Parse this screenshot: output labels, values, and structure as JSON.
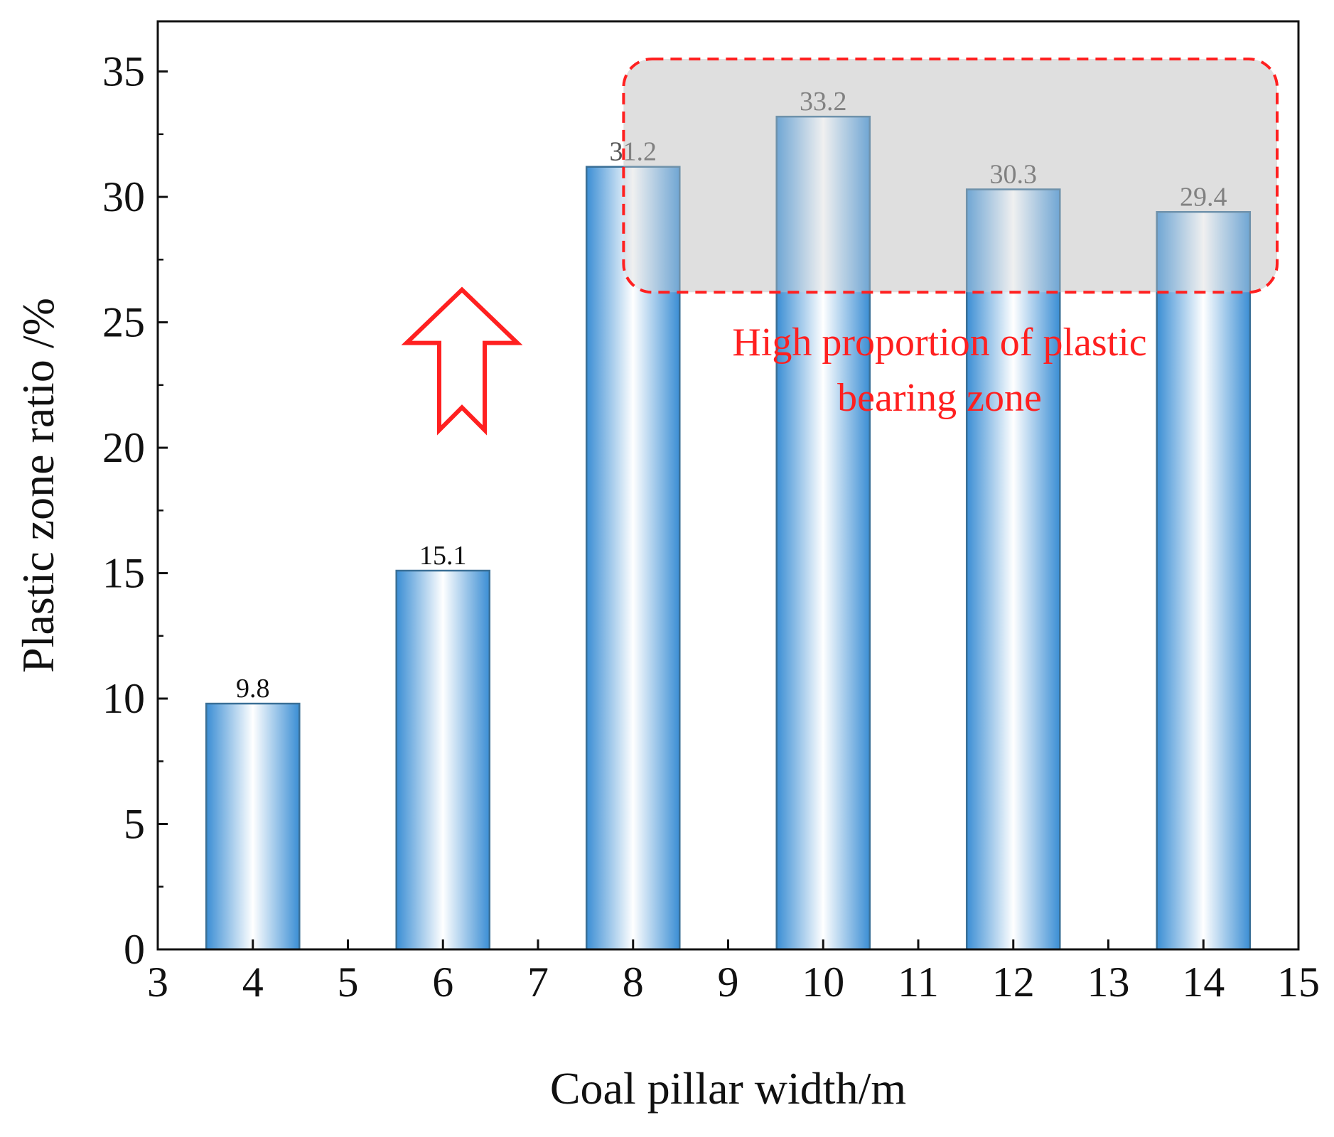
{
  "chart_data": {
    "type": "bar",
    "title": "",
    "xlabel": "Coal pillar width/m",
    "ylabel": "Plastic zone ratio /%",
    "x": [
      4,
      6,
      8,
      10,
      12,
      14
    ],
    "values": [
      9.8,
      15.1,
      31.2,
      33.2,
      30.3,
      29.4
    ],
    "data_labels": [
      "9.8",
      "15.1",
      "31.2",
      "33.2",
      "30.3",
      "29.4"
    ],
    "xlim": [
      3,
      15
    ],
    "ylim": [
      0,
      37
    ],
    "xticks": [
      "3",
      "4",
      "5",
      "6",
      "7",
      "8",
      "9",
      "10",
      "11",
      "12",
      "13",
      "14",
      "15"
    ],
    "yticks": [
      "0",
      "5",
      "10",
      "15",
      "20",
      "25",
      "30",
      "35"
    ],
    "grid": false,
    "highlight_region": {
      "x_range": [
        7.9,
        15
      ],
      "y_range": [
        26.2,
        35.5
      ],
      "label_lines": [
        "High proportion of plastic",
        "bearing zone"
      ]
    },
    "arrow": {
      "at_x": 6.2,
      "y_range": [
        20.7,
        26.3
      ],
      "direction": "up"
    }
  },
  "colors": {
    "bar_edge": "#3a6f96",
    "bar_dark": "#3b8ed4",
    "bar_light": "#ffffff",
    "annotation": "#ff2020",
    "highlight_fill": "#d4d4d4"
  }
}
